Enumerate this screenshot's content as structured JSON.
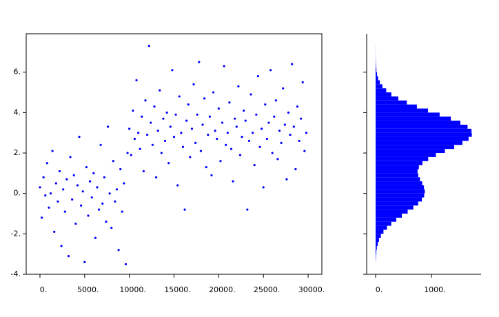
{
  "chart_data": [
    {
      "type": "scatter",
      "color": "#0000ff",
      "xlim": [
        -1540,
        31540
      ],
      "ylim": [
        -4,
        7.9
      ],
      "xticks": [
        {
          "value": 0,
          "label": "0."
        },
        {
          "value": 5000,
          "label": "5000."
        },
        {
          "value": 10000,
          "label": "10000."
        },
        {
          "value": 15000,
          "label": "15000."
        },
        {
          "value": 20000,
          "label": "20000."
        },
        {
          "value": 25000,
          "label": "25000."
        },
        {
          "value": 30000,
          "label": "30000."
        }
      ],
      "yticks": [
        {
          "value": -4,
          "label": "-4."
        },
        {
          "value": -2,
          "label": "-2."
        },
        {
          "value": 0,
          "label": "0."
        },
        {
          "value": 2,
          "label": "2."
        },
        {
          "value": 4,
          "label": "4."
        },
        {
          "value": 6,
          "label": "6."
        }
      ],
      "x": [
        0,
        200,
        400,
        600,
        800,
        1000,
        1200,
        1400,
        1600,
        1800,
        2000,
        2200,
        2400,
        2600,
        2800,
        3000,
        3200,
        3400,
        3600,
        3800,
        4000,
        4200,
        4400,
        4600,
        4800,
        5000,
        5200,
        5400,
        5600,
        5800,
        6000,
        6200,
        6400,
        6600,
        6800,
        7000,
        7200,
        7400,
        7600,
        7800,
        8000,
        8200,
        8400,
        8600,
        8800,
        9000,
        9200,
        9400,
        9600,
        9800,
        10000,
        10200,
        10400,
        10600,
        10800,
        11000,
        11200,
        11400,
        11600,
        11800,
        12000,
        12200,
        12400,
        12600,
        12800,
        13000,
        13200,
        13400,
        13600,
        13800,
        14000,
        14200,
        14400,
        14600,
        14800,
        15000,
        15200,
        15400,
        15600,
        15800,
        16000,
        16200,
        16400,
        16600,
        16800,
        17000,
        17200,
        17400,
        17600,
        17800,
        18000,
        18200,
        18400,
        18600,
        18800,
        19000,
        19200,
        19400,
        19600,
        19800,
        20000,
        20200,
        20400,
        20600,
        20800,
        21000,
        21200,
        21400,
        21600,
        21800,
        22000,
        22200,
        22400,
        22600,
        22800,
        23000,
        23200,
        23400,
        23600,
        23800,
        24000,
        24200,
        24400,
        24600,
        24800,
        25000,
        25200,
        25400,
        25600,
        25800,
        26000,
        26200,
        26400,
        26600,
        26800,
        27000,
        27200,
        27400,
        27600,
        27800,
        28000,
        28200,
        28400,
        28600,
        28800,
        29000,
        29200,
        29400,
        29600,
        29800
      ],
      "y": [
        0.3,
        -1.2,
        0.8,
        -0.1,
        1.5,
        -0.7,
        0.0,
        2.1,
        -1.9,
        0.5,
        -0.4,
        1.1,
        -2.6,
        0.2,
        -0.9,
        0.7,
        -3.1,
        1.8,
        -0.3,
        0.9,
        -1.5,
        0.4,
        2.8,
        -0.6,
        0.1,
        -3.4,
        1.3,
        -1.1,
        0.6,
        -0.2,
        1.0,
        -2.2,
        0.3,
        -0.8,
        2.4,
        -0.5,
        0.8,
        -1.4,
        3.3,
        0.0,
        -1.7,
        1.6,
        -0.4,
        0.2,
        -2.8,
        1.2,
        -0.9,
        0.5,
        -3.5,
        2.0,
        3.2,
        1.9,
        4.1,
        2.7,
        5.6,
        3.0,
        2.2,
        3.8,
        1.1,
        4.6,
        2.9,
        7.3,
        3.5,
        2.4,
        4.3,
        0.8,
        3.1,
        5.1,
        2.0,
        3.7,
        2.6,
        4.0,
        1.5,
        3.3,
        6.1,
        2.8,
        3.9,
        0.4,
        4.8,
        3.0,
        2.3,
        -0.8,
        3.6,
        4.4,
        1.8,
        3.2,
        5.4,
        2.5,
        3.9,
        6.5,
        2.1,
        3.4,
        4.7,
        1.3,
        2.9,
        3.8,
        0.9,
        5.0,
        3.1,
        2.7,
        4.2,
        1.6,
        3.5,
        6.3,
        2.4,
        3.0,
        4.5,
        2.2,
        0.6,
        3.7,
        3.3,
        5.3,
        1.9,
        2.8,
        4.1,
        3.6,
        -0.8,
        2.6,
        4.9,
        3.0,
        1.4,
        3.9,
        5.8,
        2.3,
        3.2,
        0.3,
        4.4,
        2.7,
        3.5,
        6.1,
        2.0,
        3.8,
        4.6,
        1.7,
        3.1,
        2.5,
        5.2,
        3.4,
        0.7,
        4.0,
        2.9,
        6.4,
        3.3,
        1.2,
        4.3,
        2.6,
        3.7,
        5.5,
        2.1,
        3.0
      ]
    },
    {
      "type": "histogram",
      "orientation": "horizontal",
      "color": "#0000ff",
      "xlim": [
        -160,
        1890
      ],
      "ylim": [
        -4,
        7.9
      ],
      "xticks": [
        {
          "value": 0,
          "label": "0."
        },
        {
          "value": 1000,
          "label": "1000."
        }
      ],
      "yticks": [
        -4,
        -2,
        0,
        2,
        4,
        6
      ],
      "bins": [
        -3.4,
        -3.2,
        -3,
        -2.8,
        -2.6,
        -2.4,
        -2.2,
        -2,
        -1.8,
        -1.6,
        -1.4,
        -1.2,
        -1,
        -0.8,
        -0.6,
        -0.4,
        -0.2,
        0,
        0.2,
        0.4,
        0.6,
        0.8,
        1,
        1.2,
        1.4,
        1.6,
        1.8,
        2,
        2.2,
        2.4,
        2.6,
        2.8,
        3,
        3.2,
        3.4,
        3.6,
        3.8,
        4,
        4.2,
        4.4,
        4.6,
        4.8,
        5,
        5.2,
        5.4,
        5.6,
        5.8,
        6,
        6.2,
        6.4,
        6.6,
        6.8,
        7,
        7.2,
        7.4
      ],
      "values": [
        3,
        7,
        13,
        22,
        38,
        61,
        95,
        141,
        203,
        280,
        370,
        470,
        575,
        675,
        763,
        829,
        870,
        882,
        867,
        835,
        795,
        764,
        752,
        776,
        839,
        943,
        1080,
        1242,
        1408,
        1555,
        1666,
        1724,
        1718,
        1648,
        1519,
        1348,
        1147,
        939,
        740,
        559,
        406,
        282,
        190,
        122,
        76,
        45,
        26,
        14,
        7,
        4,
        2,
        1,
        1,
        1
      ]
    }
  ]
}
